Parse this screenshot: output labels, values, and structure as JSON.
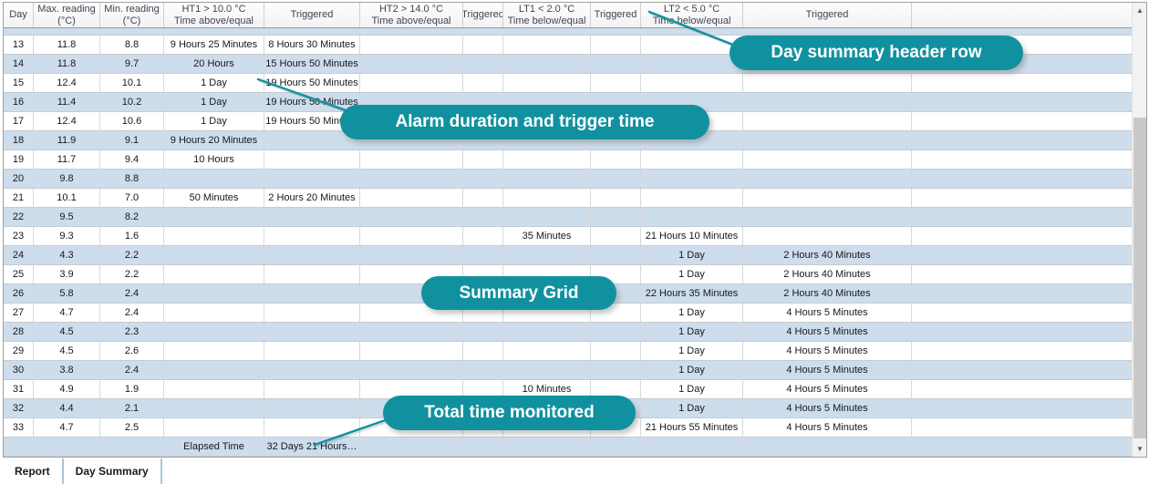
{
  "grid": {
    "columns": [
      {
        "key": "day",
        "line1": "Day",
        "line2": ""
      },
      {
        "key": "max-reading",
        "line1": "Max. reading",
        "line2": "(°C)"
      },
      {
        "key": "min-reading",
        "line1": "Min. reading",
        "line2": "(°C)"
      },
      {
        "key": "ht1",
        "line1": "HT1 > 10.0 °C",
        "line2": "Time above/equal"
      },
      {
        "key": "ht1-triggered",
        "line1": "Triggered",
        "line2": ""
      },
      {
        "key": "ht2",
        "line1": "HT2 > 14.0 °C",
        "line2": "Time above/equal"
      },
      {
        "key": "ht2-triggered",
        "line1": "Triggered",
        "line2": ""
      },
      {
        "key": "lt1",
        "line1": "LT1 < 2.0 °C",
        "line2": "Time below/equal"
      },
      {
        "key": "lt1-triggered",
        "line1": "Triggered",
        "line2": ""
      },
      {
        "key": "lt2",
        "line1": "LT2 < 5.0 °C",
        "line2": "Time below/equal"
      },
      {
        "key": "lt2-triggered",
        "line1": "Triggered",
        "line2": ""
      },
      {
        "key": "filler",
        "line1": "",
        "line2": ""
      }
    ],
    "rows": [
      [
        "13",
        "11.8",
        "8.8",
        "9 Hours 25 Minutes",
        "8 Hours 30 Minutes",
        "",
        "",
        "",
        "",
        "",
        ""
      ],
      [
        "14",
        "11.8",
        "9.7",
        "20 Hours",
        "15 Hours 50 Minutes",
        "",
        "",
        "",
        "",
        "",
        ""
      ],
      [
        "15",
        "12.4",
        "10.1",
        "1 Day",
        "19 Hours 50 Minutes",
        "",
        "",
        "",
        "",
        "",
        ""
      ],
      [
        "16",
        "11.4",
        "10.2",
        "1 Day",
        "19 Hours 50 Minutes",
        "",
        "",
        "",
        "",
        "",
        ""
      ],
      [
        "17",
        "12.4",
        "10.6",
        "1 Day",
        "19 Hours 50 Minutes",
        "",
        "",
        "",
        "",
        "",
        ""
      ],
      [
        "18",
        "11.9",
        "9.1",
        "9 Hours 20 Minutes",
        "",
        "",
        "",
        "",
        "",
        "",
        ""
      ],
      [
        "19",
        "11.7",
        "9.4",
        "10 Hours",
        "",
        "",
        "",
        "",
        "",
        "",
        ""
      ],
      [
        "20",
        "9.8",
        "8.8",
        "",
        "",
        "",
        "",
        "",
        "",
        "",
        ""
      ],
      [
        "21",
        "10.1",
        "7.0",
        "50 Minutes",
        "2 Hours 20 Minutes",
        "",
        "",
        "",
        "",
        "",
        ""
      ],
      [
        "22",
        "9.5",
        "8.2",
        "",
        "",
        "",
        "",
        "",
        "",
        "",
        ""
      ],
      [
        "23",
        "9.3",
        "1.6",
        "",
        "",
        "",
        "",
        "35 Minutes",
        "",
        "21 Hours 10 Minutes",
        ""
      ],
      [
        "24",
        "4.3",
        "2.2",
        "",
        "",
        "",
        "",
        "",
        "",
        "1 Day",
        "2 Hours 40 Minutes"
      ],
      [
        "25",
        "3.9",
        "2.2",
        "",
        "",
        "",
        "",
        "",
        "",
        "1 Day",
        "2 Hours 40 Minutes"
      ],
      [
        "26",
        "5.8",
        "2.4",
        "",
        "",
        "",
        "",
        "",
        "",
        "22 Hours 35 Minutes",
        "2 Hours 40 Minutes"
      ],
      [
        "27",
        "4.7",
        "2.4",
        "",
        "",
        "",
        "",
        "",
        "",
        "1 Day",
        "4 Hours 5 Minutes"
      ],
      [
        "28",
        "4.5",
        "2.3",
        "",
        "",
        "",
        "",
        "",
        "",
        "1 Day",
        "4 Hours 5 Minutes"
      ],
      [
        "29",
        "4.5",
        "2.6",
        "",
        "",
        "",
        "",
        "",
        "",
        "1 Day",
        "4 Hours 5 Minutes"
      ],
      [
        "30",
        "3.8",
        "2.4",
        "",
        "",
        "",
        "",
        "",
        "",
        "1 Day",
        "4 Hours 5 Minutes"
      ],
      [
        "31",
        "4.9",
        "1.9",
        "",
        "",
        "",
        "",
        "10 Minutes",
        "",
        "1 Day",
        "4 Hours 5 Minutes"
      ],
      [
        "32",
        "4.4",
        "2.1",
        "",
        "",
        "",
        "",
        "",
        "",
        "1 Day",
        "4 Hours 5 Minutes"
      ],
      [
        "33",
        "4.7",
        "2.5",
        "",
        "",
        "",
        "",
        "",
        "",
        "21 Hours 55 Minutes",
        "4 Hours 5 Minutes"
      ]
    ],
    "footer_row": [
      "",
      "",
      "",
      "Elapsed Time",
      "32 Days 21 Hours…",
      "",
      "",
      "",
      "",
      "",
      ""
    ]
  },
  "callouts": [
    {
      "id": "day-summary-header-row",
      "label": "Day summary header row"
    },
    {
      "id": "alarm-duration-and-trigger-time",
      "label": "Alarm duration and trigger time"
    },
    {
      "id": "summary-grid",
      "label": "Summary Grid"
    },
    {
      "id": "total-time-monitored",
      "label": "Total time monitored"
    }
  ],
  "tabs": [
    {
      "label": "Report",
      "active": false
    },
    {
      "label": "Day Summary",
      "active": true
    }
  ],
  "icons": {
    "scroll_up": "▲",
    "scroll_down": "▼"
  },
  "colors": {
    "accent_teal": "#1191a0",
    "row_alt_blue": "#cdddec"
  }
}
